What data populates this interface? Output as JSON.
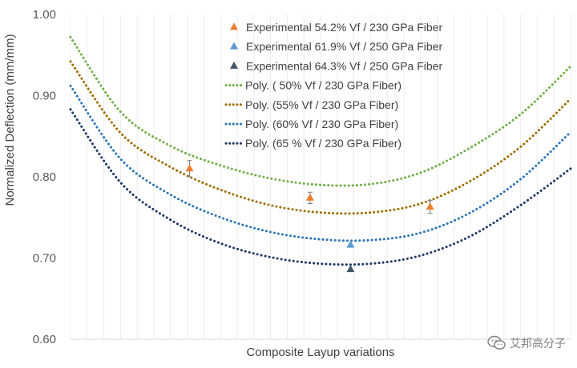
{
  "chart_data": {
    "type": "scatter",
    "title": "",
    "xlabel": "Composite Layup variations",
    "ylabel": "Normalized Deflection (mm/mm)",
    "ylim": [
      0.6,
      1.0
    ],
    "xlim": [
      0,
      1
    ],
    "yticks": [
      "0.60",
      "0.70",
      "0.80",
      "0.90",
      "1.00"
    ],
    "grid": "vertical minor gridlines",
    "legend_position": "top-center",
    "series": [
      {
        "name": "Experimental 54.2% Vf / 230 GPa Fiber",
        "kind": "marker",
        "marker": "triangle",
        "color": "#ED7D31",
        "points": [
          {
            "x": 0.238,
            "y": 0.81,
            "err": 0.01
          },
          {
            "x": 0.479,
            "y": 0.774,
            "err": 0.007
          },
          {
            "x": 0.719,
            "y": 0.763,
            "err": 0.008
          }
        ]
      },
      {
        "name": "Experimental 61.9% Vf / 250 GPa Fiber",
        "kind": "marker",
        "marker": "triangle",
        "color": "#5B9BD5",
        "points": [
          {
            "x": 0.56,
            "y": 0.716
          }
        ]
      },
      {
        "name": "Experimental 64.3% Vf / 250 GPa Fiber",
        "kind": "marker",
        "marker": "triangle",
        "color": "#44546A",
        "points": [
          {
            "x": 0.56,
            "y": 0.686
          }
        ]
      },
      {
        "name": "Poly. ( 50% Vf / 230 GPa Fiber)",
        "kind": "dotted-curve",
        "color": "#70AD47",
        "points": [
          [
            0.0,
            0.972
          ],
          [
            0.1,
            0.88
          ],
          [
            0.2,
            0.838
          ],
          [
            0.3,
            0.814
          ],
          [
            0.4,
            0.798
          ],
          [
            0.5,
            0.79
          ],
          [
            0.6,
            0.791
          ],
          [
            0.7,
            0.805
          ],
          [
            0.8,
            0.836
          ],
          [
            0.9,
            0.877
          ],
          [
            1.0,
            0.936
          ]
        ]
      },
      {
        "name": "Poly. (55% Vf / 230 GPa Fiber)",
        "kind": "dotted-curve",
        "color": "#9E6E00",
        "points": [
          [
            0.0,
            0.942
          ],
          [
            0.1,
            0.854
          ],
          [
            0.2,
            0.812
          ],
          [
            0.3,
            0.784
          ],
          [
            0.4,
            0.765
          ],
          [
            0.5,
            0.756
          ],
          [
            0.6,
            0.756
          ],
          [
            0.7,
            0.767
          ],
          [
            0.8,
            0.795
          ],
          [
            0.9,
            0.837
          ],
          [
            1.0,
            0.896
          ]
        ]
      },
      {
        "name": "Poly. (60% Vf / 230 GPa Fiber)",
        "kind": "dotted-curve",
        "color": "#2E75B6",
        "points": [
          [
            0.0,
            0.912
          ],
          [
            0.1,
            0.822
          ],
          [
            0.2,
            0.778
          ],
          [
            0.3,
            0.75
          ],
          [
            0.4,
            0.732
          ],
          [
            0.5,
            0.723
          ],
          [
            0.6,
            0.722
          ],
          [
            0.7,
            0.731
          ],
          [
            0.8,
            0.756
          ],
          [
            0.9,
            0.797
          ],
          [
            1.0,
            0.855
          ]
        ]
      },
      {
        "name": "Poly. (65 % Vf / 230 GPa Fiber)",
        "kind": "dotted-curve",
        "color": "#1F3864",
        "points": [
          [
            0.0,
            0.883
          ],
          [
            0.1,
            0.793
          ],
          [
            0.2,
            0.747
          ],
          [
            0.3,
            0.718
          ],
          [
            0.4,
            0.701
          ],
          [
            0.5,
            0.693
          ],
          [
            0.6,
            0.693
          ],
          [
            0.7,
            0.703
          ],
          [
            0.8,
            0.727
          ],
          [
            0.9,
            0.765
          ],
          [
            1.0,
            0.81
          ]
        ]
      }
    ]
  },
  "watermark": {
    "text": "艾邦高分子",
    "icon": "wechat-icon",
    "color": "#7F7F7F"
  }
}
